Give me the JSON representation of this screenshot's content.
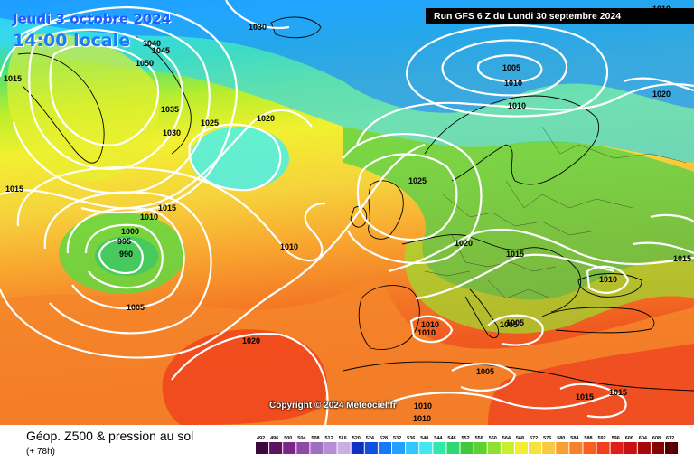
{
  "header": {
    "date_line": "Jeudi 3 octobre 2024",
    "time_line": "14:00 locale",
    "run_info": "Run GFS 6 Z du Lundi 30 septembre 2024",
    "copyright": "Copyright © 2024 Meteociel.fr"
  },
  "legend": {
    "title": "Géop. Z500 & pression au sol",
    "subtitle": "(+ 78h)",
    "scale_values": [
      "492",
      "496",
      "500",
      "504",
      "508",
      "512",
      "516",
      "520",
      "524",
      "528",
      "532",
      "536",
      "540",
      "544",
      "548",
      "552",
      "556",
      "560",
      "564",
      "568",
      "572",
      "576",
      "580",
      "584",
      "588",
      "592",
      "596",
      "600",
      "604",
      "608",
      "612"
    ],
    "scale_colors": [
      "#3b0a3a",
      "#5a1460",
      "#7a2888",
      "#8f4aa8",
      "#a26cc0",
      "#b48fd4",
      "#c8b0e4",
      "#1030c0",
      "#1050e0",
      "#1878f8",
      "#20a0ff",
      "#30c8ff",
      "#40e8f0",
      "#30e8b0",
      "#30d870",
      "#40c840",
      "#60d030",
      "#90e030",
      "#c8f030",
      "#f0f030",
      "#f8e040",
      "#f8c840",
      "#f8a030",
      "#f88028",
      "#f86020",
      "#f04020",
      "#e02018",
      "#c81010",
      "#a80808",
      "#880404",
      "#580000"
    ]
  },
  "isobars": [
    "1030",
    "1010",
    "1040",
    "1045",
    "1050",
    "1035",
    "1030",
    "1025",
    "1020",
    "1015",
    "1015",
    "1010",
    "1000",
    "995",
    "990",
    "1005",
    "1010",
    "1025",
    "1020",
    "1015",
    "1010",
    "1005",
    "1010",
    "1010",
    "1005",
    "1020",
    "1015",
    "1010",
    "1005",
    "1020",
    "1010",
    "1015",
    "1015",
    "1010",
    "1010",
    "1005",
    "1020",
    "1015",
    "1010"
  ]
}
